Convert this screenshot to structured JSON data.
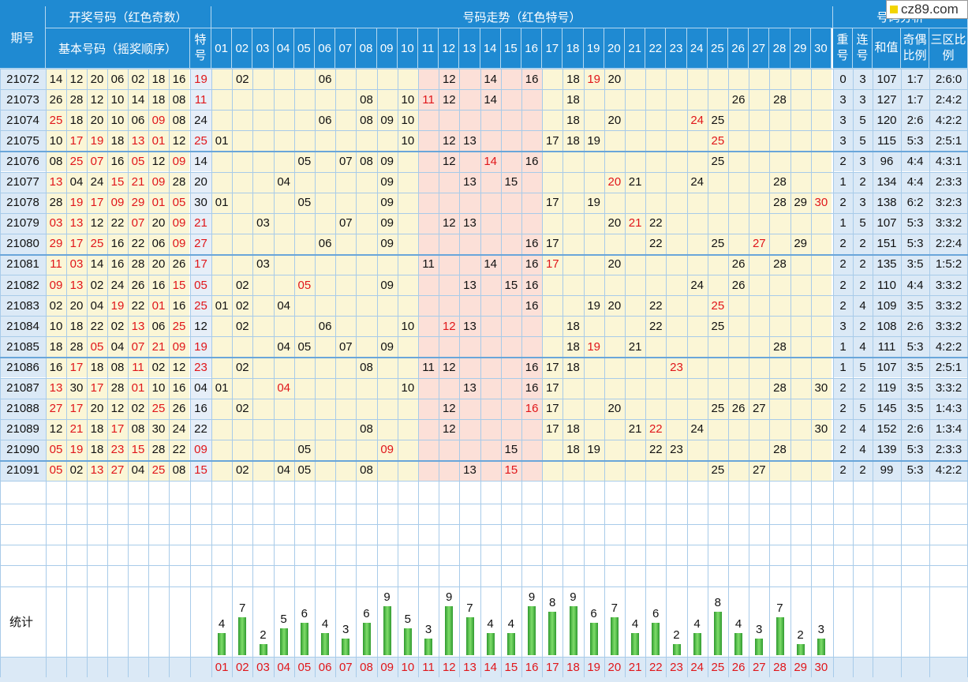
{
  "headers": {
    "period": "期号",
    "draw_group": "开奖号码（红色奇数）",
    "basic_numbers": "基本号码（摇奖顺序）",
    "special": "特号",
    "trend_group": "号码走势（红色特号）",
    "analysis_group": "号码分析",
    "repeat": "重号",
    "consecutive": "连号",
    "sum": "和值",
    "odd_even": "奇偶比例",
    "zones": "三区比例"
  },
  "numbers": [
    "01",
    "02",
    "03",
    "04",
    "05",
    "06",
    "07",
    "08",
    "09",
    "10",
    "11",
    "12",
    "13",
    "14",
    "15",
    "16",
    "17",
    "18",
    "19",
    "20",
    "21",
    "22",
    "23",
    "24",
    "25",
    "26",
    "27",
    "28",
    "29",
    "30"
  ],
  "stats_label": "统计",
  "logo_text": "cz89.com",
  "colors": {
    "header": "#1f8ad2",
    "odd": "#e0161a",
    "trend_bg": "#fbf6d6",
    "trend_pink": "#fce0d8",
    "bar": "#33a033"
  },
  "rows": [
    {
      "id": "21072",
      "basic": [
        "14",
        "12",
        "20",
        "06",
        "02",
        "18",
        "16"
      ],
      "sp": "19",
      "hits": [
        "02",
        "06",
        "12",
        "14",
        "16",
        "18",
        "19",
        "20"
      ],
      "repeat": "0",
      "consec": "3",
      "sum": "107",
      "oe": "1:7",
      "zones": "2:6:0"
    },
    {
      "id": "21073",
      "basic": [
        "26",
        "28",
        "12",
        "10",
        "14",
        "18",
        "08"
      ],
      "sp": "11",
      "hits": [
        "08",
        "10",
        "11",
        "12",
        "14",
        "18",
        "26",
        "28"
      ],
      "repeat": "3",
      "consec": "3",
      "sum": "127",
      "oe": "1:7",
      "zones": "2:4:2"
    },
    {
      "id": "21074",
      "basic": [
        "25",
        "18",
        "20",
        "10",
        "06",
        "09",
        "08"
      ],
      "sp": "24",
      "hits": [
        "06",
        "08",
        "09",
        "10",
        "18",
        "20",
        "24",
        "25"
      ],
      "repeat": "3",
      "consec": "5",
      "sum": "120",
      "oe": "2:6",
      "zones": "4:2:2"
    },
    {
      "id": "21075",
      "basic": [
        "10",
        "17",
        "19",
        "18",
        "13",
        "01",
        "12"
      ],
      "sp": "25",
      "hits": [
        "01",
        "10",
        "12",
        "13",
        "17",
        "18",
        "19",
        "25"
      ],
      "repeat": "3",
      "consec": "5",
      "sum": "115",
      "oe": "5:3",
      "zones": "2:5:1"
    },
    {
      "id": "21076",
      "basic": [
        "08",
        "25",
        "07",
        "16",
        "05",
        "12",
        "09"
      ],
      "sp": "14",
      "hits": [
        "05",
        "07",
        "08",
        "09",
        "12",
        "14",
        "16",
        "25"
      ],
      "repeat": "2",
      "consec": "3",
      "sum": "96",
      "oe": "4:4",
      "zones": "4:3:1"
    },
    {
      "id": "21077",
      "basic": [
        "13",
        "04",
        "24",
        "15",
        "21",
        "09",
        "28"
      ],
      "sp": "20",
      "hits": [
        "04",
        "09",
        "13",
        "15",
        "20",
        "21",
        "24",
        "28"
      ],
      "repeat": "1",
      "consec": "2",
      "sum": "134",
      "oe": "4:4",
      "zones": "2:3:3"
    },
    {
      "id": "21078",
      "basic": [
        "28",
        "19",
        "17",
        "09",
        "29",
        "01",
        "05"
      ],
      "sp": "30",
      "hits": [
        "01",
        "05",
        "09",
        "17",
        "19",
        "28",
        "29",
        "30"
      ],
      "repeat": "2",
      "consec": "3",
      "sum": "138",
      "oe": "6:2",
      "zones": "3:2:3"
    },
    {
      "id": "21079",
      "basic": [
        "03",
        "13",
        "12",
        "22",
        "07",
        "20",
        "09"
      ],
      "sp": "21",
      "hits": [
        "03",
        "07",
        "09",
        "12",
        "13",
        "20",
        "21",
        "22"
      ],
      "repeat": "1",
      "consec": "5",
      "sum": "107",
      "oe": "5:3",
      "zones": "3:3:2"
    },
    {
      "id": "21080",
      "basic": [
        "29",
        "17",
        "25",
        "16",
        "22",
        "06",
        "09"
      ],
      "sp": "27",
      "hits": [
        "06",
        "09",
        "16",
        "17",
        "22",
        "25",
        "27",
        "29"
      ],
      "repeat": "2",
      "consec": "2",
      "sum": "151",
      "oe": "5:3",
      "zones": "2:2:4"
    },
    {
      "id": "21081",
      "basic": [
        "11",
        "03",
        "14",
        "16",
        "28",
        "20",
        "26"
      ],
      "sp": "17",
      "hits": [
        "03",
        "11",
        "14",
        "16",
        "17",
        "20",
        "26",
        "28"
      ],
      "repeat": "2",
      "consec": "2",
      "sum": "135",
      "oe": "3:5",
      "zones": "1:5:2"
    },
    {
      "id": "21082",
      "basic": [
        "09",
        "13",
        "02",
        "24",
        "26",
        "16",
        "15"
      ],
      "sp": "05",
      "hits": [
        "02",
        "05",
        "09",
        "13",
        "15",
        "16",
        "24",
        "26"
      ],
      "repeat": "2",
      "consec": "2",
      "sum": "110",
      "oe": "4:4",
      "zones": "3:3:2"
    },
    {
      "id": "21083",
      "basic": [
        "02",
        "20",
        "04",
        "19",
        "22",
        "01",
        "16"
      ],
      "sp": "25",
      "hits": [
        "01",
        "02",
        "04",
        "16",
        "19",
        "20",
        "22",
        "25"
      ],
      "repeat": "2",
      "consec": "4",
      "sum": "109",
      "oe": "3:5",
      "zones": "3:3:2"
    },
    {
      "id": "21084",
      "basic": [
        "10",
        "18",
        "22",
        "02",
        "13",
        "06",
        "25"
      ],
      "sp": "12",
      "hits": [
        "02",
        "06",
        "10",
        "12",
        "13",
        "18",
        "22",
        "25"
      ],
      "repeat": "3",
      "consec": "2",
      "sum": "108",
      "oe": "2:6",
      "zones": "3:3:2"
    },
    {
      "id": "21085",
      "basic": [
        "18",
        "28",
        "05",
        "04",
        "07",
        "21",
        "09"
      ],
      "sp": "19",
      "hits": [
        "04",
        "05",
        "07",
        "09",
        "18",
        "19",
        "21",
        "28"
      ],
      "repeat": "1",
      "consec": "4",
      "sum": "111",
      "oe": "5:3",
      "zones": "4:2:2"
    },
    {
      "id": "21086",
      "basic": [
        "16",
        "17",
        "18",
        "08",
        "11",
        "02",
        "12"
      ],
      "sp": "23",
      "hits": [
        "02",
        "08",
        "11",
        "12",
        "16",
        "17",
        "18",
        "23"
      ],
      "repeat": "1",
      "consec": "5",
      "sum": "107",
      "oe": "3:5",
      "zones": "2:5:1"
    },
    {
      "id": "21087",
      "basic": [
        "13",
        "30",
        "17",
        "28",
        "01",
        "10",
        "16"
      ],
      "sp": "04",
      "hits": [
        "01",
        "04",
        "10",
        "13",
        "16",
        "17",
        "28",
        "30"
      ],
      "repeat": "2",
      "consec": "2",
      "sum": "119",
      "oe": "3:5",
      "zones": "3:3:2"
    },
    {
      "id": "21088",
      "basic": [
        "27",
        "17",
        "20",
        "12",
        "02",
        "25",
        "26"
      ],
      "sp": "16",
      "hits": [
        "02",
        "12",
        "16",
        "17",
        "20",
        "25",
        "26",
        "27"
      ],
      "repeat": "2",
      "consec": "5",
      "sum": "145",
      "oe": "3:5",
      "zones": "1:4:3"
    },
    {
      "id": "21089",
      "basic": [
        "12",
        "21",
        "18",
        "17",
        "08",
        "30",
        "24"
      ],
      "sp": "22",
      "hits": [
        "08",
        "12",
        "17",
        "18",
        "21",
        "22",
        "24",
        "30"
      ],
      "repeat": "2",
      "consec": "4",
      "sum": "152",
      "oe": "2:6",
      "zones": "1:3:4"
    },
    {
      "id": "21090",
      "basic": [
        "05",
        "19",
        "18",
        "23",
        "15",
        "28",
        "22"
      ],
      "sp": "09",
      "hits": [
        "05",
        "09",
        "15",
        "18",
        "19",
        "22",
        "23",
        "28"
      ],
      "repeat": "2",
      "consec": "4",
      "sum": "139",
      "oe": "5:3",
      "zones": "2:3:3"
    },
    {
      "id": "21091",
      "basic": [
        "05",
        "02",
        "13",
        "27",
        "04",
        "25",
        "08"
      ],
      "sp": "15",
      "hits": [
        "02",
        "04",
        "05",
        "08",
        "13",
        "15",
        "25",
        "27"
      ],
      "repeat": "2",
      "consec": "2",
      "sum": "99",
      "oe": "5:3",
      "zones": "4:2:2"
    }
  ],
  "chart_data": {
    "type": "bar",
    "categories": [
      "01",
      "02",
      "03",
      "04",
      "05",
      "06",
      "07",
      "08",
      "09",
      "10",
      "11",
      "12",
      "13",
      "14",
      "15",
      "16",
      "17",
      "18",
      "19",
      "20",
      "21",
      "22",
      "23",
      "24",
      "25",
      "26",
      "27",
      "28",
      "29",
      "30"
    ],
    "values": [
      4,
      7,
      2,
      5,
      6,
      4,
      3,
      6,
      9,
      5,
      3,
      9,
      7,
      4,
      4,
      9,
      8,
      9,
      6,
      7,
      4,
      6,
      2,
      4,
      8,
      4,
      3,
      7,
      2,
      3
    ],
    "ylim": [
      0,
      9
    ]
  }
}
